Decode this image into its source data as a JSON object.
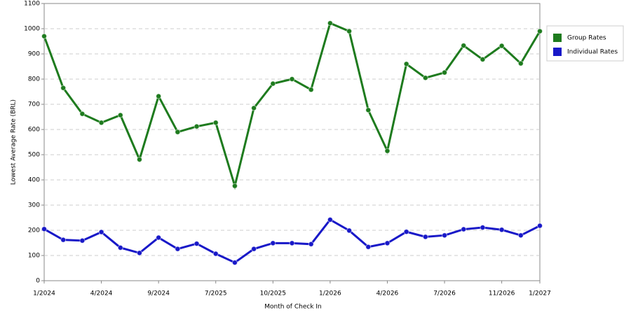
{
  "chart_data": {
    "type": "line",
    "x_label": "Month of Check In",
    "y_label": "Lowest Average Rate (BRL)",
    "categories": [
      "1/2024",
      null,
      null,
      "4/2024",
      null,
      null,
      "9/2024",
      null,
      null,
      "7/2025",
      null,
      null,
      "10/2025",
      null,
      null,
      "1/2026",
      null,
      null,
      "4/2026",
      null,
      null,
      "7/2026",
      null,
      null,
      "11/2026",
      null,
      "1/2027"
    ],
    "series": [
      {
        "name": "Group Rates",
        "color": "#1e7b1e",
        "values": [
          970,
          765,
          662,
          627,
          657,
          481,
          732,
          590,
          612,
          627,
          376,
          685,
          782,
          800,
          758,
          1022,
          990,
          677,
          515,
          860,
          805,
          826,
          933,
          878,
          932,
          862,
          990
        ]
      },
      {
        "name": "Individual Rates",
        "color": "#1818c8",
        "values": [
          205,
          162,
          159,
          193,
          131,
          110,
          171,
          126,
          147,
          107,
          72,
          126,
          149,
          149,
          145,
          242,
          199,
          134,
          149,
          194,
          174,
          180,
          204,
          211,
          202,
          180,
          218
        ]
      }
    ],
    "ylim": [
      0,
      1100
    ],
    "yticks": [
      0,
      100,
      200,
      300,
      400,
      500,
      600,
      700,
      800,
      900,
      1000,
      1100
    ],
    "grid": true,
    "legend": "right"
  }
}
